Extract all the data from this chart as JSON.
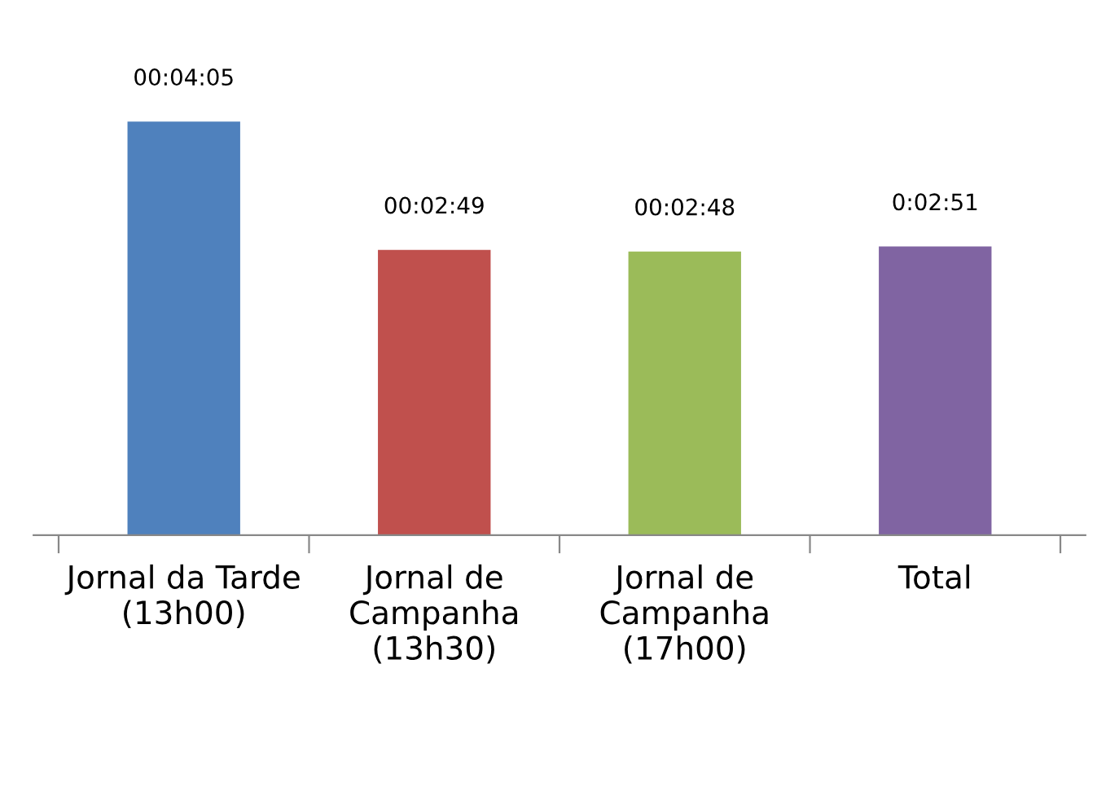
{
  "chart_data": {
    "type": "bar",
    "categories": [
      "Jornal da Tarde (13h00)",
      "Jornal de Campanha (13h30)",
      "Jornal de Campanha (17h00)",
      "Total"
    ],
    "values": [
      245,
      169,
      168,
      171
    ],
    "colors": [
      "#4f81bd",
      "#c0504d",
      "#9bbb59",
      "#8064a2"
    ],
    "value_labels": [
      "00:04:05",
      "00:02:49",
      "00:02:48",
      "0:02:51"
    ],
    "grid": false,
    "legend": false
  }
}
